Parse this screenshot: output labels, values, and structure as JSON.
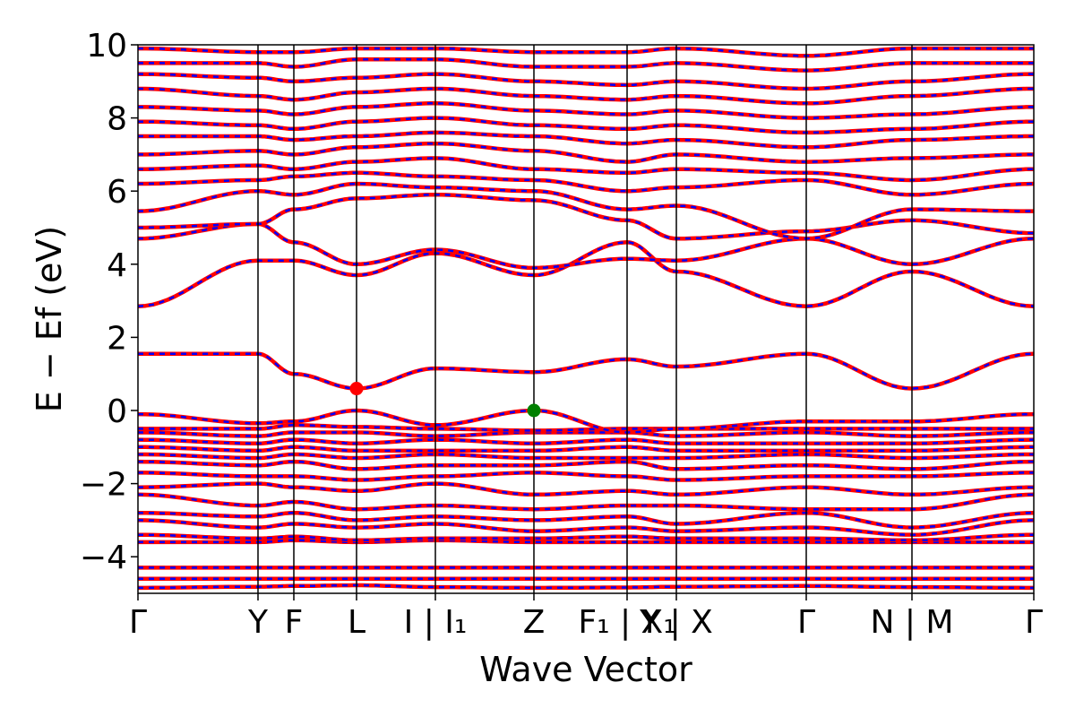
{
  "chart_data": {
    "type": "line",
    "xlabel": "Wave Vector",
    "ylabel": "E − Ef (eV)",
    "ylim": [
      -5,
      10
    ],
    "yticks": [
      {
        "value": 10,
        "label": "10"
      },
      {
        "value": 8,
        "label": "8"
      },
      {
        "value": 6,
        "label": "6"
      },
      {
        "value": 4,
        "label": "4"
      },
      {
        "value": 2,
        "label": "2"
      },
      {
        "value": 0,
        "label": "0"
      },
      {
        "value": -2,
        "label": "−2"
      },
      {
        "value": -4,
        "label": "−4"
      }
    ],
    "xlim": [
      0,
      100
    ],
    "kpoints": [
      {
        "pos": 0,
        "label": "Γ"
      },
      {
        "pos": 13.4,
        "label": "Y"
      },
      {
        "pos": 17.4,
        "label": "F"
      },
      {
        "pos": 24.4,
        "label": "L"
      },
      {
        "pos": 33.2,
        "label": "I | I₁"
      },
      {
        "pos": 44.2,
        "label": "Z"
      },
      {
        "pos": 54.6,
        "label": "F₁ | X₁"
      },
      {
        "pos": 60.1,
        "label": "Y | X"
      },
      {
        "pos": 74.6,
        "label": "Γ"
      },
      {
        "pos": 86.4,
        "label": "N | M"
      },
      {
        "pos": 100,
        "label": "Γ"
      }
    ],
    "series_colors": {
      "spin_up": "#ff0000",
      "spin_down": "#0000ff"
    },
    "band_edges": [
      {
        "name": "CBM",
        "x": 24.4,
        "y": 0.6,
        "color": "#ff0000"
      },
      {
        "name": "VBM",
        "x": 44.2,
        "y": 0.0,
        "color": "#008000"
      }
    ],
    "bands": [
      [
        -4.85,
        -4.82,
        -4.8,
        -4.78,
        -4.83,
        -4.85,
        -4.84,
        -4.82,
        -4.8,
        -4.83,
        -4.85
      ],
      [
        -4.6,
        -4.6,
        -4.6,
        -4.6,
        -4.6,
        -4.6,
        -4.6,
        -4.6,
        -4.6,
        -4.6,
        -4.6
      ],
      [
        -4.3,
        -4.3,
        -4.3,
        -4.3,
        -4.3,
        -4.3,
        -4.3,
        -4.3,
        -4.3,
        -4.3,
        -4.3
      ],
      [
        -3.6,
        -3.6,
        -3.55,
        -3.6,
        -3.55,
        -3.6,
        -3.6,
        -3.6,
        -3.6,
        -3.6,
        -3.6
      ],
      [
        -3.4,
        -3.5,
        -3.45,
        -3.55,
        -3.5,
        -3.5,
        -3.45,
        -3.5,
        -3.5,
        -3.55,
        -3.4
      ],
      [
        -3.0,
        -3.2,
        -3.1,
        -3.2,
        -3.1,
        -3.3,
        -3.2,
        -3.3,
        -3.2,
        -3.4,
        -3.0
      ],
      [
        -2.8,
        -2.9,
        -2.8,
        -3.0,
        -2.9,
        -3.0,
        -2.9,
        -3.1,
        -2.8,
        -3.2,
        -2.8
      ],
      [
        -2.3,
        -2.6,
        -2.5,
        -2.7,
        -2.6,
        -2.7,
        -2.6,
        -2.6,
        -2.7,
        -2.7,
        -2.3
      ],
      [
        -2.1,
        -2.0,
        -2.1,
        -2.2,
        -2.0,
        -2.3,
        -2.2,
        -2.3,
        -2.1,
        -2.3,
        -2.1
      ],
      [
        -1.7,
        -1.8,
        -1.8,
        -1.9,
        -1.8,
        -1.7,
        -1.8,
        -1.9,
        -1.8,
        -1.8,
        -1.7
      ],
      [
        -1.4,
        -1.5,
        -1.4,
        -1.6,
        -1.5,
        -1.5,
        -1.4,
        -1.6,
        -1.5,
        -1.6,
        -1.4
      ],
      [
        -1.2,
        -1.3,
        -1.2,
        -1.3,
        -1.2,
        -1.3,
        -1.3,
        -1.3,
        -1.2,
        -1.3,
        -1.2
      ],
      [
        -1.0,
        -1.1,
        -1.0,
        -1.1,
        -1.1,
        -1.1,
        -1.0,
        -1.1,
        -1.1,
        -1.1,
        -1.0
      ],
      [
        -0.8,
        -0.9,
        -0.8,
        -0.9,
        -0.8,
        -0.9,
        -0.8,
        -0.9,
        -0.9,
        -0.9,
        -0.8
      ],
      [
        -0.6,
        -0.7,
        -0.6,
        -0.6,
        -0.7,
        -0.6,
        -0.6,
        -0.7,
        -0.6,
        -0.7,
        -0.6
      ],
      [
        -0.5,
        -0.5,
        -0.4,
        -0.45,
        -0.5,
        -0.55,
        -0.5,
        -0.5,
        -0.5,
        -0.5,
        -0.5
      ],
      [
        -0.1,
        -0.35,
        -0.3,
        0.0,
        -0.4,
        0.0,
        -0.6,
        -0.5,
        -0.3,
        -0.3,
        -0.1
      ],
      [
        1.55,
        1.55,
        1.0,
        0.6,
        1.15,
        1.05,
        1.4,
        1.2,
        1.55,
        0.6,
        1.55
      ],
      [
        2.85,
        4.1,
        4.1,
        3.7,
        4.3,
        3.7,
        4.6,
        3.8,
        2.85,
        3.8,
        2.85
      ],
      [
        4.7,
        5.1,
        4.6,
        4.0,
        4.4,
        3.9,
        4.15,
        4.1,
        4.7,
        4.0,
        4.7
      ],
      [
        5.0,
        5.1,
        5.5,
        5.8,
        5.9,
        5.75,
        5.2,
        4.7,
        4.9,
        5.2,
        4.85
      ],
      [
        5.45,
        6.0,
        5.9,
        6.2,
        6.1,
        6.0,
        5.5,
        5.6,
        4.7,
        5.5,
        5.45
      ],
      [
        6.2,
        6.3,
        6.4,
        6.5,
        6.4,
        6.3,
        6.0,
        6.1,
        6.3,
        5.9,
        6.2
      ],
      [
        6.6,
        6.7,
        6.6,
        6.8,
        6.9,
        6.6,
        6.5,
        6.6,
        6.5,
        6.3,
        6.6
      ],
      [
        7.0,
        7.1,
        7.0,
        7.2,
        7.3,
        7.1,
        6.8,
        7.0,
        6.8,
        6.9,
        7.0
      ],
      [
        7.5,
        7.5,
        7.4,
        7.5,
        7.6,
        7.5,
        7.3,
        7.4,
        7.2,
        7.4,
        7.5
      ],
      [
        7.9,
        7.8,
        7.7,
        7.9,
        8.0,
        7.8,
        7.7,
        7.8,
        7.6,
        7.7,
        7.9
      ],
      [
        8.3,
        8.2,
        8.1,
        8.3,
        8.4,
        8.2,
        8.1,
        8.2,
        8.0,
        8.1,
        8.3
      ],
      [
        8.8,
        8.6,
        8.5,
        8.7,
        8.8,
        8.6,
        8.5,
        8.6,
        8.4,
        8.6,
        8.8
      ],
      [
        9.2,
        9.1,
        9.0,
        9.1,
        9.2,
        9.0,
        8.9,
        9.0,
        8.8,
        9.0,
        9.2
      ],
      [
        9.5,
        9.5,
        9.4,
        9.6,
        9.6,
        9.4,
        9.4,
        9.5,
        9.3,
        9.5,
        9.5
      ],
      [
        9.9,
        9.8,
        9.8,
        9.9,
        9.9,
        9.8,
        9.8,
        9.9,
        9.7,
        9.9,
        9.9
      ]
    ]
  }
}
